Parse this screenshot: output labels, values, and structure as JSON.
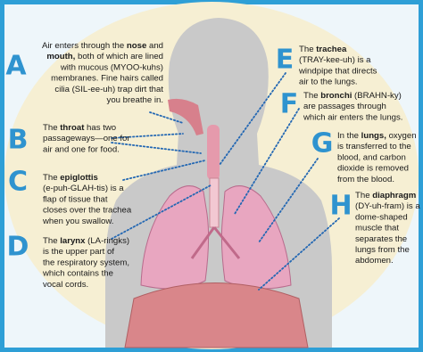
{
  "labels": [
    {
      "letter": "A",
      "lines": [
        [
          {
            "text": "Air enters through the "
          },
          {
            "text": "nose",
            "bold": true
          },
          {
            "text": " and"
          }
        ],
        [
          {
            "text": "mouth,",
            "bold": true
          },
          {
            "text": " both of which are lined"
          }
        ],
        [
          {
            "text": "with mucous (MYOO-kuhs)"
          }
        ],
        [
          {
            "text": "membranes. Fine hairs called"
          }
        ],
        [
          {
            "text": "cilia (SIL-ee-uh) trap dirt that"
          }
        ],
        [
          {
            "text": "you breathe in."
          }
        ]
      ]
    },
    {
      "letter": "B",
      "lines": [
        [
          {
            "text": "The "
          },
          {
            "text": "throat",
            "bold": true
          },
          {
            "text": " has two"
          }
        ],
        [
          {
            "text": "passageways—one for"
          }
        ],
        [
          {
            "text": "air and one for food."
          }
        ]
      ]
    },
    {
      "letter": "C",
      "lines": [
        [
          {
            "text": "The "
          },
          {
            "text": "epiglottis",
            "bold": true
          }
        ],
        [
          {
            "text": "(e-puh-GLAH-tis) is a"
          }
        ],
        [
          {
            "text": "flap of tissue that"
          }
        ],
        [
          {
            "text": "closes over the trachea"
          }
        ],
        [
          {
            "text": "when you swallow."
          }
        ]
      ]
    },
    {
      "letter": "D",
      "lines": [
        [
          {
            "text": "The "
          },
          {
            "text": "larynx",
            "bold": true
          },
          {
            "text": " (LA-ringks)"
          }
        ],
        [
          {
            "text": "is the upper part of"
          }
        ],
        [
          {
            "text": "the respiratory system,"
          }
        ],
        [
          {
            "text": "which contains the"
          }
        ],
        [
          {
            "text": "vocal cords."
          }
        ]
      ]
    },
    {
      "letter": "E",
      "lines": [
        [
          {
            "text": "The "
          },
          {
            "text": "trachea",
            "bold": true
          }
        ],
        [
          {
            "text": "(TRAY-kee-uh) is a"
          }
        ],
        [
          {
            "text": "windpipe that directs"
          }
        ],
        [
          {
            "text": "air to the lungs."
          }
        ]
      ]
    },
    {
      "letter": "F",
      "lines": [
        [
          {
            "text": "The "
          },
          {
            "text": "bronchi",
            "bold": true
          },
          {
            "text": " (BRAHN-ky)"
          }
        ],
        [
          {
            "text": "are passages through"
          }
        ],
        [
          {
            "text": "which air enters the lungs."
          }
        ]
      ]
    },
    {
      "letter": "G",
      "lines": [
        [
          {
            "text": "In the "
          },
          {
            "text": "lungs,",
            "bold": true
          },
          {
            "text": " oxygen"
          }
        ],
        [
          {
            "text": "is transferred to the"
          }
        ],
        [
          {
            "text": "blood, and carbon"
          }
        ],
        [
          {
            "text": "dioxide is removed"
          }
        ],
        [
          {
            "text": "from the blood."
          }
        ]
      ]
    },
    {
      "letter": "H",
      "lines": [
        [
          {
            "text": "The "
          },
          {
            "text": "diaphragm",
            "bold": true
          }
        ],
        [
          {
            "text": "(DY-uh-fram) is a"
          }
        ],
        [
          {
            "text": "dome-shaped"
          }
        ],
        [
          {
            "text": "muscle that"
          }
        ],
        [
          {
            "text": "separates the"
          }
        ],
        [
          {
            "text": "lungs from the"
          }
        ],
        [
          {
            "text": "abdomen."
          }
        ]
      ]
    }
  ]
}
